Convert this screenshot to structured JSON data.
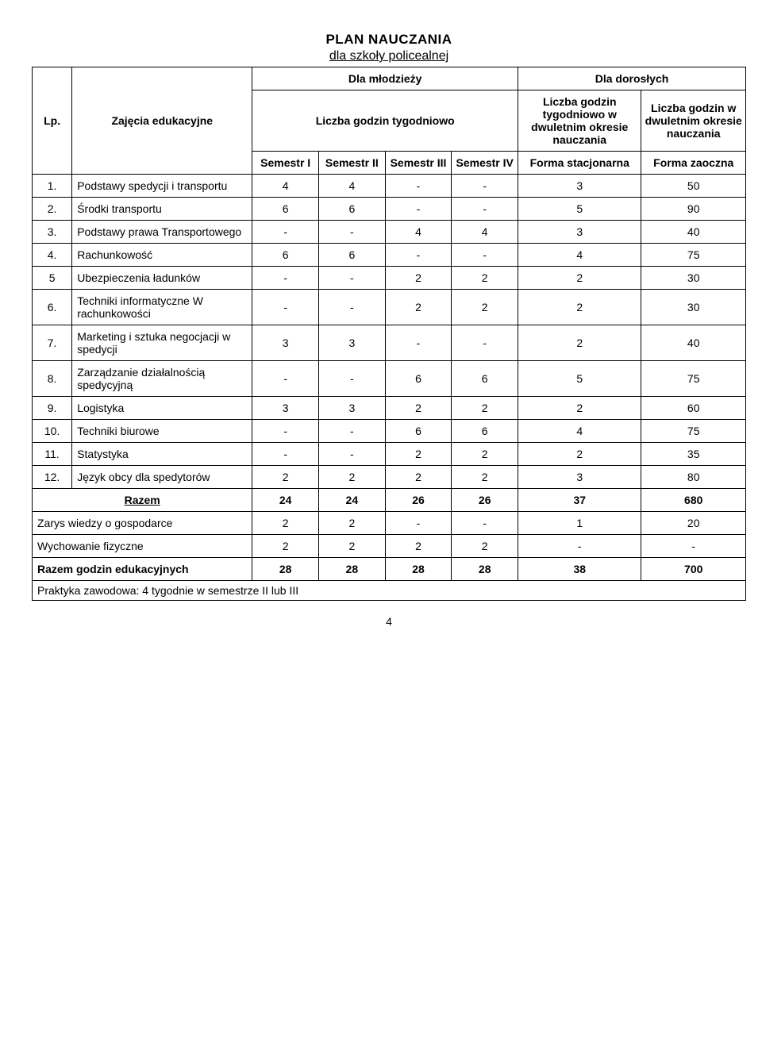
{
  "title": "PLAN NAUCZANIA",
  "subtitle": "dla szkoły policealnej",
  "headers": {
    "lp": "Lp.",
    "subject": "Zajęcia edukacyjne",
    "youth": "Dla młodzieży",
    "adults": "Dla dorosłych",
    "weekly": "Liczba godzin tygodniowo",
    "two_year_stac": "Liczba godzin tygodniowo w dwuletnim okresie nauczania",
    "two_year_zao": "Liczba godzin w dwuletnim okresie nauczania",
    "sem1": "Semestr I",
    "sem2": "Semestr II",
    "sem3": "Semestr III",
    "sem4": "Semestr IV",
    "form_stac": "Forma stacjonarna",
    "form_zao": "Forma zaoczna"
  },
  "rows": [
    {
      "lp": "1.",
      "subject": "Podstawy spedycji i transportu",
      "s1": "4",
      "s2": "4",
      "s3": "-",
      "s4": "-",
      "stac": "3",
      "zao": "50"
    },
    {
      "lp": "2.",
      "subject": "Środki transportu",
      "s1": "6",
      "s2": "6",
      "s3": "-",
      "s4": "-",
      "stac": "5",
      "zao": "90"
    },
    {
      "lp": "3.",
      "subject": "Podstawy prawa Transportowego",
      "s1": "-",
      "s2": "-",
      "s3": "4",
      "s4": "4",
      "stac": "3",
      "zao": "40"
    },
    {
      "lp": "4.",
      "subject": "Rachunkowość",
      "s1": "6",
      "s2": "6",
      "s3": "-",
      "s4": "-",
      "stac": "4",
      "zao": "75"
    },
    {
      "lp": "5",
      "subject": "Ubezpieczenia ładunków",
      "s1": "-",
      "s2": "-",
      "s3": "2",
      "s4": "2",
      "stac": "2",
      "zao": "30"
    },
    {
      "lp": "6.",
      "subject": "Techniki informatyczne W rachunkowości",
      "s1": "-",
      "s2": "-",
      "s3": "2",
      "s4": "2",
      "stac": "2",
      "zao": "30"
    },
    {
      "lp": "7.",
      "subject": "Marketing i sztuka negocjacji w spedycji",
      "s1": "3",
      "s2": "3",
      "s3": "-",
      "s4": "-",
      "stac": "2",
      "zao": "40"
    },
    {
      "lp": "8.",
      "subject": "Zarządzanie działalnością spedycyjną",
      "s1": "-",
      "s2": "-",
      "s3": "6",
      "s4": "6",
      "stac": "5",
      "zao": "75"
    },
    {
      "lp": "9.",
      "subject": "Logistyka",
      "s1": "3",
      "s2": "3",
      "s3": "2",
      "s4": "2",
      "stac": "2",
      "zao": "60"
    },
    {
      "lp": "10.",
      "subject": "Techniki biurowe",
      "s1": "-",
      "s2": "-",
      "s3": "6",
      "s4": "6",
      "stac": "4",
      "zao": "75"
    },
    {
      "lp": "11.",
      "subject": "Statystyka",
      "s1": "-",
      "s2": "-",
      "s3": "2",
      "s4": "2",
      "stac": "2",
      "zao": "35"
    },
    {
      "lp": "12.",
      "subject": "Język obcy dla spedytorów",
      "s1": "2",
      "s2": "2",
      "s3": "2",
      "s4": "2",
      "stac": "3",
      "zao": "80"
    }
  ],
  "razem": {
    "label": "Razem",
    "s1": "24",
    "s2": "24",
    "s3": "26",
    "s4": "26",
    "stac": "37",
    "zao": "680"
  },
  "extra1": {
    "label": "Zarys wiedzy o gospodarce",
    "s1": "2",
    "s2": "2",
    "s3": "-",
    "s4": "-",
    "stac": "1",
    "zao": "20"
  },
  "extra2": {
    "label": "Wychowanie fizyczne",
    "s1": "2",
    "s2": "2",
    "s3": "2",
    "s4": "2",
    "stac": "-",
    "zao": "-"
  },
  "total": {
    "label": "Razem godzin edukacyjnych",
    "s1": "28",
    "s2": "28",
    "s3": "28",
    "s4": "28",
    "stac": "38",
    "zao": "700"
  },
  "footnote": "Praktyka zawodowa: 4 tygodnie w semestrze II lub III",
  "page_num": "4"
}
